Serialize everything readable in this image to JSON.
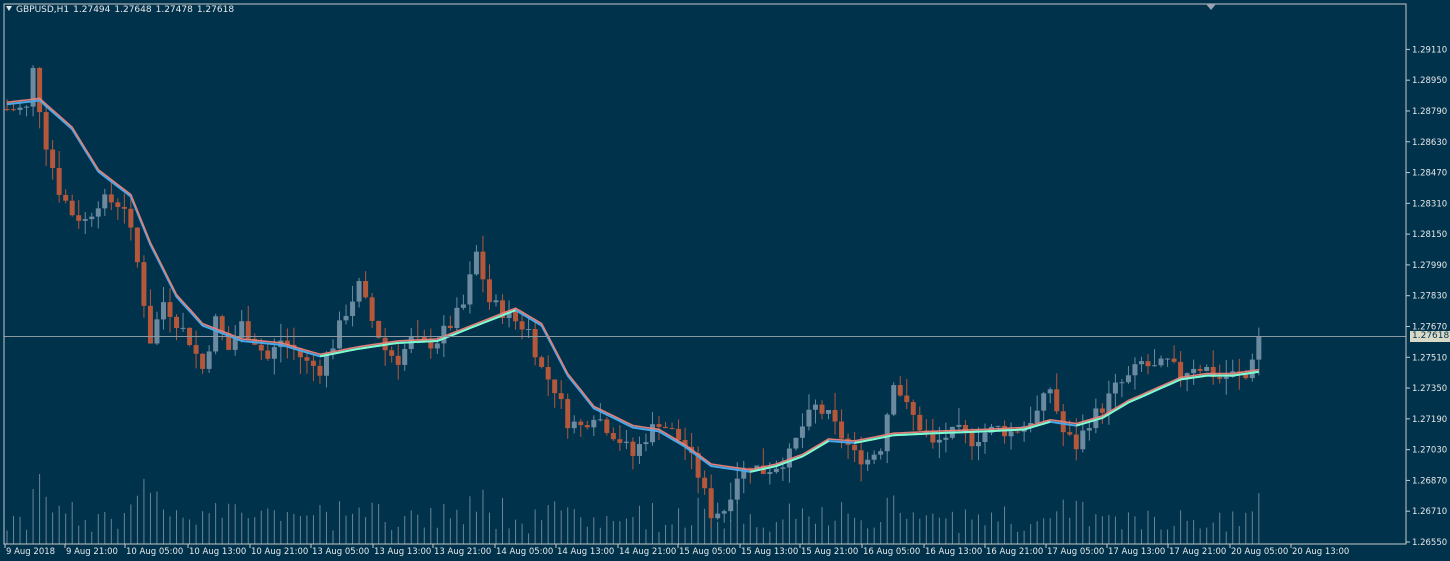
{
  "header": {
    "symbol": "GBPUSD,H1",
    "open": "1.27494",
    "high": "1.27648",
    "low": "1.27478",
    "close": "1.27618"
  },
  "current_price_label": "1.27618",
  "colors": {
    "background": "#00324c",
    "bull_candle": "#6b8aa0",
    "bear_candle": "#b5573a",
    "ma_fast": "#e57f76",
    "ma_slow_up": "#7fffd0",
    "ma_slow_down": "#4aa8e8",
    "grid_text": "#e8e8e8",
    "price_line": "#8c98a2",
    "volume": "#8ea0ac"
  },
  "chart_data": {
    "type": "candlestick",
    "symbol": "GBPUSD",
    "timeframe": "H1",
    "y_ticks": [
      "1.29110",
      "1.28950",
      "1.28790",
      "1.28630",
      "1.28470",
      "1.28310",
      "1.28150",
      "1.27990",
      "1.27830",
      "1.27670",
      "1.27510",
      "1.27350",
      "1.27190",
      "1.27030",
      "1.26870",
      "1.26710",
      "1.26550"
    ],
    "ylim": [
      1.2655,
      1.2919
    ],
    "x_ticks": [
      "9 Aug 2018",
      "9 Aug 21:00",
      "10 Aug 05:00",
      "10 Aug 13:00",
      "10 Aug 21:00",
      "13 Aug 05:00",
      "13 Aug 13:00",
      "13 Aug 21:00",
      "14 Aug 05:00",
      "14 Aug 13:00",
      "14 Aug 21:00",
      "15 Aug 05:00",
      "15 Aug 13:00",
      "15 Aug 21:00",
      "16 Aug 05:00",
      "16 Aug 13:00",
      "16 Aug 21:00",
      "17 Aug 05:00",
      "17 Aug 13:00",
      "17 Aug 21:00",
      "20 Aug 05:00",
      "20 Aug 13:00"
    ],
    "current_price": 1.27618,
    "price_path": [
      [
        0,
        1.288
      ],
      [
        3,
        1.288
      ],
      [
        4,
        1.29
      ],
      [
        6,
        1.2862
      ],
      [
        8,
        1.2838
      ],
      [
        10,
        1.2826
      ],
      [
        12,
        1.2822
      ],
      [
        14,
        1.2832
      ],
      [
        16,
        1.2832
      ],
      [
        18,
        1.283
      ],
      [
        20,
        1.28
      ],
      [
        22,
        1.276
      ],
      [
        24,
        1.278
      ],
      [
        26,
        1.277
      ],
      [
        28,
        1.276
      ],
      [
        30,
        1.2745
      ],
      [
        32,
        1.277
      ],
      [
        34,
        1.2755
      ],
      [
        36,
        1.2768
      ],
      [
        38,
        1.276
      ],
      [
        40,
        1.275
      ],
      [
        42,
        1.276
      ],
      [
        44,
        1.2755
      ],
      [
        46,
        1.2748
      ],
      [
        48,
        1.2745
      ],
      [
        50,
        1.2758
      ],
      [
        52,
        1.2775
      ],
      [
        54,
        1.2788
      ],
      [
        56,
        1.277
      ],
      [
        58,
        1.2755
      ],
      [
        60,
        1.275
      ],
      [
        62,
        1.276
      ],
      [
        64,
        1.2757
      ],
      [
        66,
        1.276
      ],
      [
        68,
        1.2768
      ],
      [
        70,
        1.2778
      ],
      [
        72,
        1.2805
      ],
      [
        74,
        1.278
      ],
      [
        76,
        1.2775
      ],
      [
        78,
        1.277
      ],
      [
        80,
        1.2765
      ],
      [
        82,
        1.2745
      ],
      [
        84,
        1.2735
      ],
      [
        86,
        1.2718
      ],
      [
        88,
        1.2715
      ],
      [
        90,
        1.2722
      ],
      [
        92,
        1.2715
      ],
      [
        94,
        1.2708
      ],
      [
        96,
        1.27
      ],
      [
        98,
        1.271
      ],
      [
        100,
        1.2718
      ],
      [
        102,
        1.2712
      ],
      [
        104,
        1.2705
      ],
      [
        106,
        1.269
      ],
      [
        108,
        1.267
      ],
      [
        110,
        1.2672
      ],
      [
        112,
        1.269
      ],
      [
        114,
        1.2695
      ],
      [
        116,
        1.2692
      ],
      [
        118,
        1.2695
      ],
      [
        120,
        1.27
      ],
      [
        122,
        1.2715
      ],
      [
        124,
        1.2725
      ],
      [
        126,
        1.272
      ],
      [
        128,
        1.271
      ],
      [
        130,
        1.27
      ],
      [
        132,
        1.2698
      ],
      [
        134,
        1.2705
      ],
      [
        136,
        1.274
      ],
      [
        138,
        1.2725
      ],
      [
        140,
        1.2715
      ],
      [
        142,
        1.2705
      ],
      [
        144,
        1.271
      ],
      [
        146,
        1.2712
      ],
      [
        148,
        1.2708
      ],
      [
        150,
        1.2712
      ],
      [
        152,
        1.2714
      ],
      [
        154,
        1.2712
      ],
      [
        156,
        1.2716
      ],
      [
        158,
        1.2722
      ],
      [
        160,
        1.2735
      ],
      [
        162,
        1.2712
      ],
      [
        164,
        1.2705
      ],
      [
        166,
        1.2718
      ],
      [
        168,
        1.2725
      ],
      [
        170,
        1.2735
      ],
      [
        172,
        1.274
      ],
      [
        174,
        1.2748
      ],
      [
        176,
        1.2745
      ],
      [
        178,
        1.2748
      ],
      [
        180,
        1.2742
      ],
      [
        182,
        1.2747
      ],
      [
        184,
        1.2745
      ],
      [
        186,
        1.274
      ],
      [
        188,
        1.2742
      ],
      [
        190,
        1.274
      ],
      [
        191,
        1.2752
      ],
      [
        192,
        1.27618
      ]
    ],
    "ma_path": [
      [
        0,
        1.2883
      ],
      [
        5,
        1.2885
      ],
      [
        10,
        1.287
      ],
      [
        14,
        1.2848
      ],
      [
        19,
        1.2835
      ],
      [
        22,
        1.281
      ],
      [
        26,
        1.2783
      ],
      [
        30,
        1.2768
      ],
      [
        36,
        1.276
      ],
      [
        42,
        1.2758
      ],
      [
        48,
        1.2752
      ],
      [
        54,
        1.2756
      ],
      [
        60,
        1.2759
      ],
      [
        66,
        1.276
      ],
      [
        72,
        1.2768
      ],
      [
        78,
        1.2776
      ],
      [
        82,
        1.2768
      ],
      [
        86,
        1.2742
      ],
      [
        90,
        1.2725
      ],
      [
        96,
        1.2715
      ],
      [
        100,
        1.2713
      ],
      [
        104,
        1.2705
      ],
      [
        108,
        1.2695
      ],
      [
        114,
        1.2692
      ],
      [
        118,
        1.2695
      ],
      [
        122,
        1.27
      ],
      [
        126,
        1.2708
      ],
      [
        130,
        1.2707
      ],
      [
        136,
        1.2711
      ],
      [
        142,
        1.2712
      ],
      [
        150,
        1.2713
      ],
      [
        156,
        1.2714
      ],
      [
        160,
        1.2718
      ],
      [
        164,
        1.2716
      ],
      [
        168,
        1.272
      ],
      [
        172,
        1.2728
      ],
      [
        176,
        1.2734
      ],
      [
        180,
        1.274
      ],
      [
        184,
        1.2742
      ],
      [
        188,
        1.2742
      ],
      [
        192,
        1.2744
      ]
    ],
    "bars": 193
  }
}
